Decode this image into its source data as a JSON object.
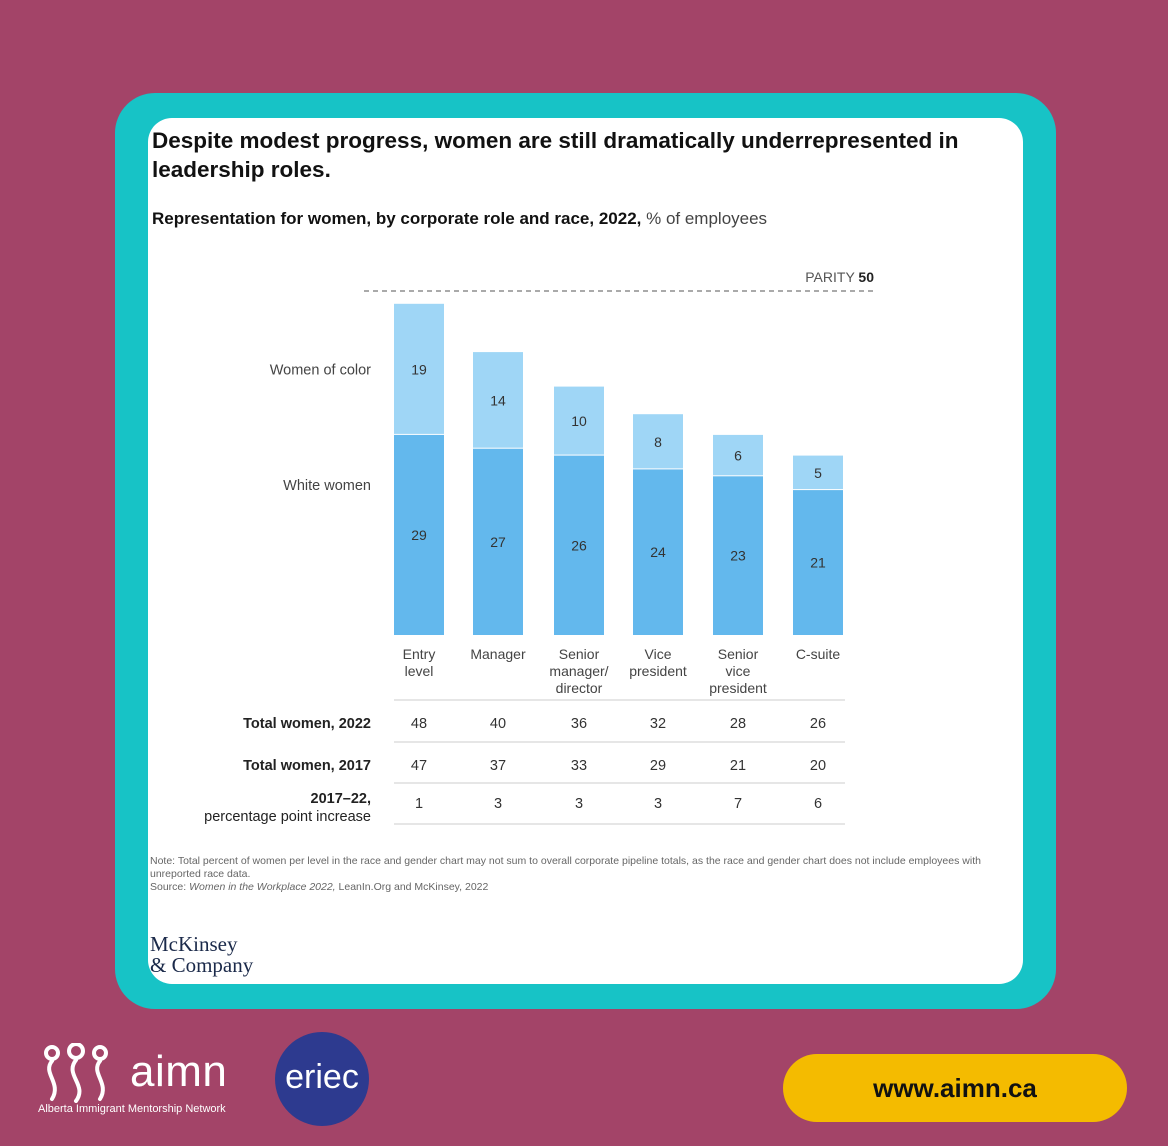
{
  "title": "Despite modest progress, women are still dramatically underrepresented in leadership roles.",
  "subtitle_bold": "Representation for women, by corporate role and race, 2022,",
  "subtitle_unit": "% of employees",
  "chart_data": {
    "type": "bar",
    "stacked": true,
    "parity_label": "PARITY",
    "parity_value": 50,
    "categories": [
      "Entry level",
      "Manager",
      "Senior manager/ director",
      "Vice president",
      "Senior vice president",
      "C-suite"
    ],
    "category_lines": [
      [
        "Entry",
        "level"
      ],
      [
        "Manager"
      ],
      [
        "Senior",
        "manager/",
        "director"
      ],
      [
        "Vice",
        "president"
      ],
      [
        "Senior",
        "vice",
        "president"
      ],
      [
        "C-suite"
      ]
    ],
    "series": [
      {
        "name": "White women",
        "values": [
          29,
          27,
          26,
          24,
          23,
          21
        ]
      },
      {
        "name": "Women of color",
        "values": [
          19,
          14,
          10,
          8,
          6,
          5
        ]
      }
    ],
    "table": [
      {
        "label": [
          "Total women, 2022"
        ],
        "values": [
          "48",
          "40",
          "36",
          "32",
          "28",
          "26"
        ]
      },
      {
        "label": [
          "Total women, 2017"
        ],
        "values": [
          "47",
          "37",
          "33",
          "29",
          "21",
          "20"
        ]
      },
      {
        "label": [
          "2017–22,",
          "percentage point increase"
        ],
        "values": [
          "1",
          "3",
          "3",
          "3",
          "7",
          "6"
        ]
      }
    ],
    "colors": {
      "white_women": "#63b8ed",
      "women_of_color": "#9fd6f6"
    }
  },
  "note": {
    "text": "Note: Total percent of women per level in the race and gender chart may not sum to overall corporate pipeline totals, as the race and gender chart does not include employees with unreported race data.",
    "source_prefix": "Source:",
    "source_title": "Women in the Workplace 2022,",
    "source_rest": "LeanIn.Org and McKinsey, 2022"
  },
  "publisher_logo": [
    "McKinsey",
    "& Company"
  ],
  "footer": {
    "brand": "aimn",
    "tagline": "Alberta Immigrant Mentorship Network",
    "partner": "eriec",
    "url": "www.aimn.ca"
  }
}
